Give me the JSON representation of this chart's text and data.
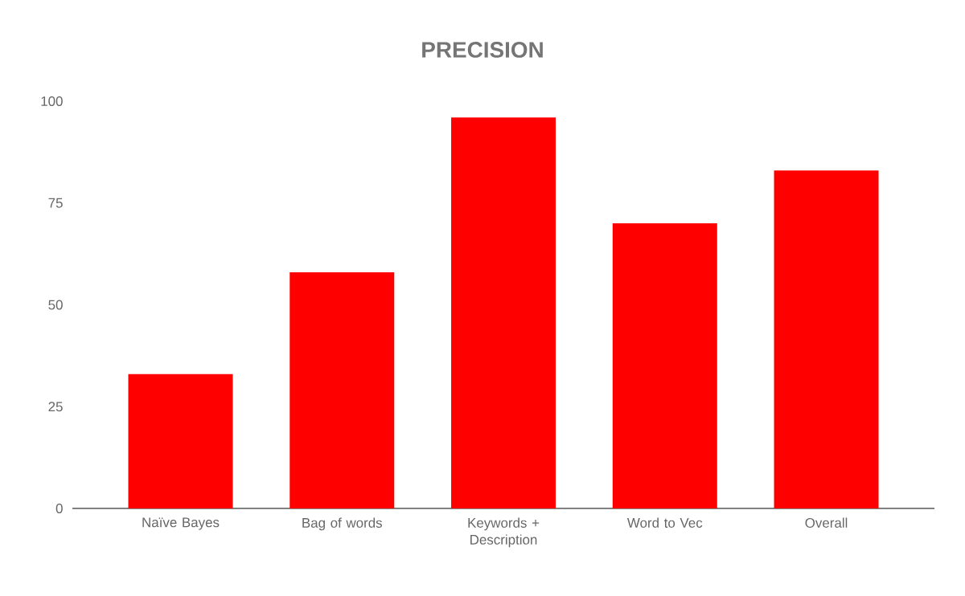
{
  "chart_data": {
    "type": "bar",
    "title": "PRECISION",
    "categories": [
      "Naïve Bayes",
      "Bag of words",
      "Keywords + Description",
      "Word to Vec",
      "Overall"
    ],
    "values": [
      33,
      58,
      96,
      70,
      83
    ],
    "color": "#ff0000",
    "ylim": [
      0,
      100
    ],
    "yticks": [
      0,
      25,
      50,
      75,
      100
    ]
  }
}
